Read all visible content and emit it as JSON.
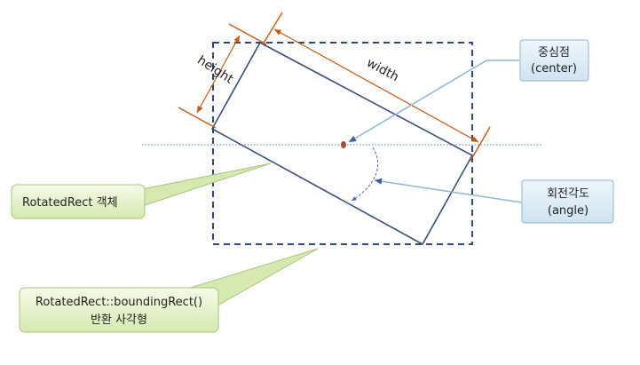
{
  "dimensions": {
    "height_label": "height",
    "width_label": "width"
  },
  "callouts": {
    "center": {
      "line1": "중심점",
      "line2": "(center)"
    },
    "angle": {
      "line1": "회전각도",
      "line2": "(angle)"
    },
    "rotated_rect": {
      "line1": "RotatedRect 객체"
    },
    "bounding_rect": {
      "line1": "RotatedRect::boundingRect()",
      "line2": "반환 사각형"
    }
  },
  "colors": {
    "rect_stroke": "#3a4f7a",
    "dimension_orange": "#c55a11",
    "center_dot": "#a0522d",
    "blue_callout_fill": "#dbeaf4",
    "blue_callout_stroke": "#8fb6cf",
    "green_callout_fill": "#e6f2cc",
    "green_callout_stroke": "#a9c47a"
  }
}
